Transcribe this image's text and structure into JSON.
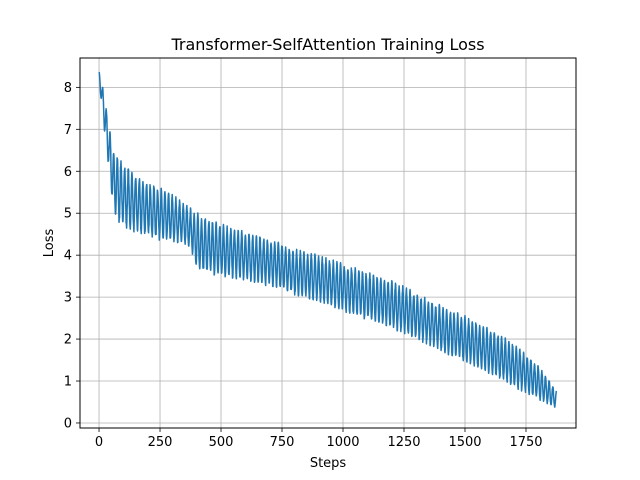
{
  "chart_data": {
    "type": "line",
    "title": "Transformer-SelfAttention Training Loss",
    "xlabel": "Steps",
    "ylabel": "Loss",
    "xlim": [
      -78,
      1955
    ],
    "ylim": [
      -0.12,
      8.7
    ],
    "x_ticks": [
      0,
      250,
      500,
      750,
      1000,
      1250,
      1500,
      1750
    ],
    "y_ticks": [
      0,
      1,
      2,
      3,
      4,
      5,
      6,
      7,
      8
    ],
    "grid": true,
    "line_color": "#1f77b4",
    "series": [
      {
        "name": "",
        "oscillation_period_steps": 15,
        "x_max": 1875,
        "envelope": {
          "steps": [
            0,
            5,
            20,
            40,
            60,
            100,
            150,
            200,
            250,
            300,
            350,
            380,
            400,
            450,
            500,
            600,
            700,
            750,
            800,
            900,
            1000,
            1100,
            1200,
            1300,
            1400,
            1500,
            1600,
            1700,
            1800,
            1875
          ],
          "upper": [
            8.35,
            8.35,
            7.8,
            7.1,
            6.45,
            6.15,
            5.85,
            5.7,
            5.55,
            5.4,
            5.2,
            5.05,
            4.95,
            4.8,
            4.7,
            4.5,
            4.35,
            4.25,
            4.1,
            3.95,
            3.75,
            3.55,
            3.35,
            3.05,
            2.75,
            2.5,
            2.2,
            1.85,
            1.35,
            0.75
          ],
          "lower": [
            8.15,
            7.9,
            7.1,
            6.1,
            5.0,
            4.7,
            4.6,
            4.5,
            4.4,
            4.35,
            4.3,
            4.1,
            3.7,
            3.6,
            3.55,
            3.45,
            3.3,
            3.2,
            3.1,
            2.95,
            2.7,
            2.5,
            2.3,
            2.05,
            1.75,
            1.5,
            1.2,
            0.9,
            0.6,
            0.35
          ]
        }
      }
    ]
  }
}
